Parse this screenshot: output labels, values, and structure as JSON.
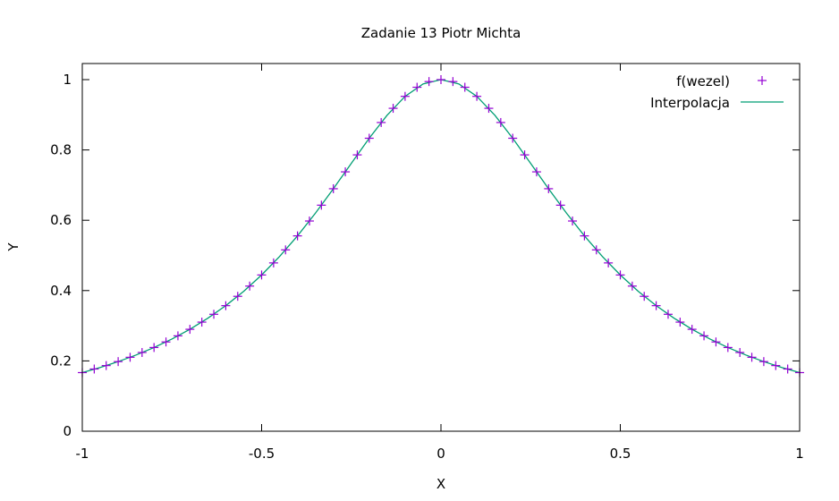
{
  "chart_data": {
    "type": "line",
    "title": "Zadanie 13 Piotr Michta",
    "xlabel": "X",
    "ylabel": "Y",
    "xlim": [
      -1,
      1
    ],
    "ylim": [
      0,
      1.0
    ],
    "xticks": [
      -1,
      -0.5,
      0,
      0.5,
      1
    ],
    "xtick_labels": [
      "-1",
      "-0.5",
      "0",
      "0.5",
      "1"
    ],
    "yticks": [
      0,
      0.2,
      0.4,
      0.6,
      0.8,
      1
    ],
    "ytick_labels": [
      "0",
      "0.2",
      "0.4",
      "0.6",
      "0.8",
      "1"
    ],
    "grid": false,
    "legend_position": "top-right",
    "series": [
      {
        "name": "f(wezel)",
        "kind": "points",
        "marker": "plus",
        "color": "#9400d3",
        "x": [
          -1.0,
          -0.96667,
          -0.93333,
          -0.9,
          -0.86667,
          -0.83333,
          -0.8,
          -0.76667,
          -0.73333,
          -0.7,
          -0.66667,
          -0.63333,
          -0.6,
          -0.56667,
          -0.53333,
          -0.5,
          -0.46667,
          -0.43333,
          -0.4,
          -0.36667,
          -0.33333,
          -0.3,
          -0.26667,
          -0.23333,
          -0.2,
          -0.16667,
          -0.13333,
          -0.1,
          -0.06667,
          -0.03333,
          0.0,
          0.03333,
          0.06667,
          0.1,
          0.13333,
          0.16667,
          0.2,
          0.23333,
          0.26667,
          0.3,
          0.33333,
          0.36667,
          0.4,
          0.43333,
          0.46667,
          0.5,
          0.53333,
          0.56667,
          0.6,
          0.63333,
          0.66667,
          0.7,
          0.73333,
          0.76667,
          0.8,
          0.83333,
          0.86667,
          0.9,
          0.93333,
          0.96667,
          1.0
        ],
        "y": [
          0.1667,
          0.1769,
          0.1867,
          0.198,
          0.2103,
          0.2239,
          0.2381,
          0.2539,
          0.2713,
          0.2899,
          0.3103,
          0.3326,
          0.3571,
          0.3837,
          0.4128,
          0.4444,
          0.4787,
          0.5158,
          0.5556,
          0.5979,
          0.6429,
          0.6897,
          0.7377,
          0.786,
          0.8333,
          0.878,
          0.9184,
          0.9524,
          0.9783,
          0.9945,
          1.0,
          0.9945,
          0.9783,
          0.9524,
          0.9184,
          0.878,
          0.8333,
          0.786,
          0.7377,
          0.6897,
          0.6429,
          0.5979,
          0.5556,
          0.5158,
          0.4787,
          0.4444,
          0.4128,
          0.3837,
          0.3571,
          0.3326,
          0.3103,
          0.2899,
          0.2713,
          0.2539,
          0.2381,
          0.2239,
          0.2103,
          0.198,
          0.1867,
          0.1769,
          0.1667
        ]
      },
      {
        "name": "Interpolacja",
        "kind": "line",
        "color": "#009e73",
        "x": [
          -1.0,
          -0.95,
          -0.9,
          -0.85,
          -0.8,
          -0.75,
          -0.7,
          -0.65,
          -0.6,
          -0.55,
          -0.5,
          -0.45,
          -0.4,
          -0.35,
          -0.3,
          -0.25,
          -0.2,
          -0.15,
          -0.1,
          -0.05,
          0.0,
          0.05,
          0.1,
          0.15,
          0.2,
          0.25,
          0.3,
          0.35,
          0.4,
          0.45,
          0.5,
          0.55,
          0.6,
          0.65,
          0.7,
          0.75,
          0.8,
          0.85,
          0.9,
          0.95,
          1.0
        ],
        "y": [
          0.1667,
          0.1814,
          0.198,
          0.2168,
          0.2381,
          0.2623,
          0.2899,
          0.3215,
          0.3571,
          0.3978,
          0.4444,
          0.4969,
          0.5556,
          0.6202,
          0.6897,
          0.7619,
          0.8333,
          0.8989,
          0.9524,
          0.9877,
          1.0,
          0.9877,
          0.9524,
          0.8989,
          0.8333,
          0.7619,
          0.6897,
          0.6202,
          0.5556,
          0.4969,
          0.4444,
          0.3978,
          0.3571,
          0.3215,
          0.2899,
          0.2623,
          0.2381,
          0.2168,
          0.198,
          0.1814,
          0.1667
        ]
      }
    ]
  }
}
